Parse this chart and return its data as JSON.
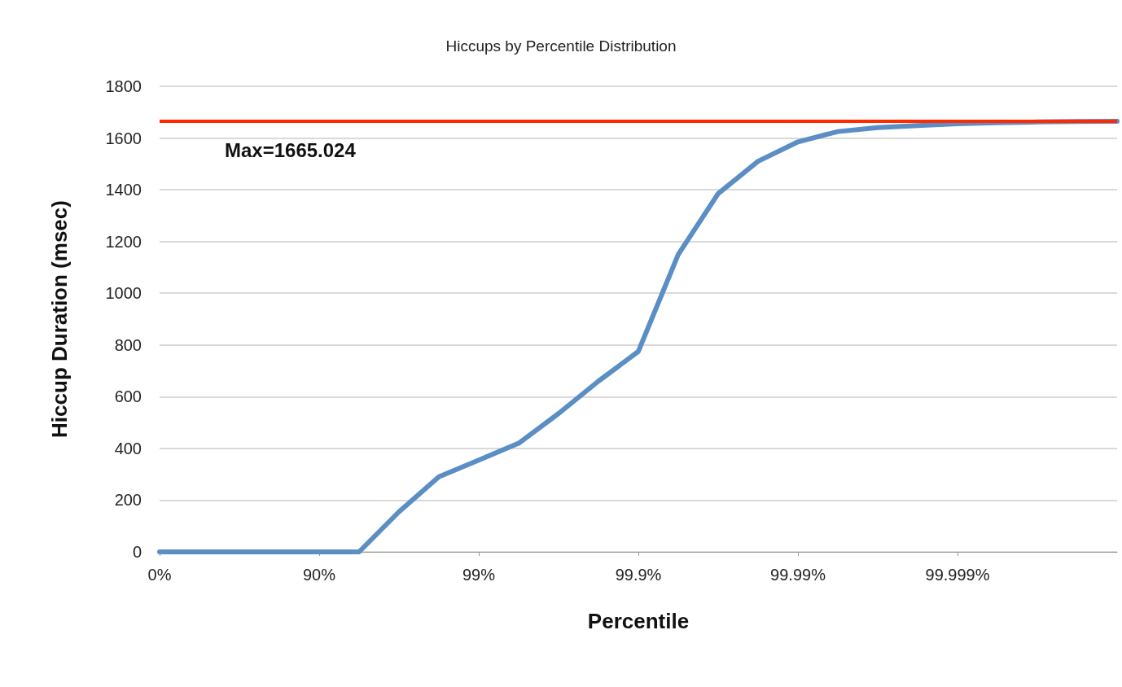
{
  "chart_data": {
    "type": "line",
    "title": "Hiccups by Percentile Distribution",
    "xlabel": "Percentile",
    "ylabel": "Hiccup Duration (msec)",
    "categories": [
      "0%",
      null,
      null,
      null,
      "90%",
      null,
      null,
      null,
      "99%",
      null,
      null,
      null,
      "99.9%",
      null,
      null,
      null,
      "99.99%",
      null,
      null,
      null,
      "99.999%",
      null,
      null,
      null,
      null
    ],
    "series": [
      {
        "color": "#5b8ec4",
        "values": [
          0,
          0,
          0,
          0,
          0,
          0,
          155,
          290,
          355,
          420,
          535,
          660,
          775,
          1150,
          1385,
          1510,
          1585,
          1625,
          1640,
          1648,
          1655,
          1659,
          1662,
          1664,
          1665
        ]
      }
    ],
    "ylim": [
      0,
      1800
    ],
    "yticks": [
      0,
      200,
      400,
      600,
      800,
      1000,
      1200,
      1400,
      1600,
      1800
    ],
    "ref_lines": [
      {
        "axis": "y",
        "value": 1665.024,
        "label": "Max=1665.024",
        "color": "#ff2a00",
        "line_style": "solid"
      }
    ],
    "grid": "y",
    "marker": "none",
    "line_style": "solid"
  }
}
